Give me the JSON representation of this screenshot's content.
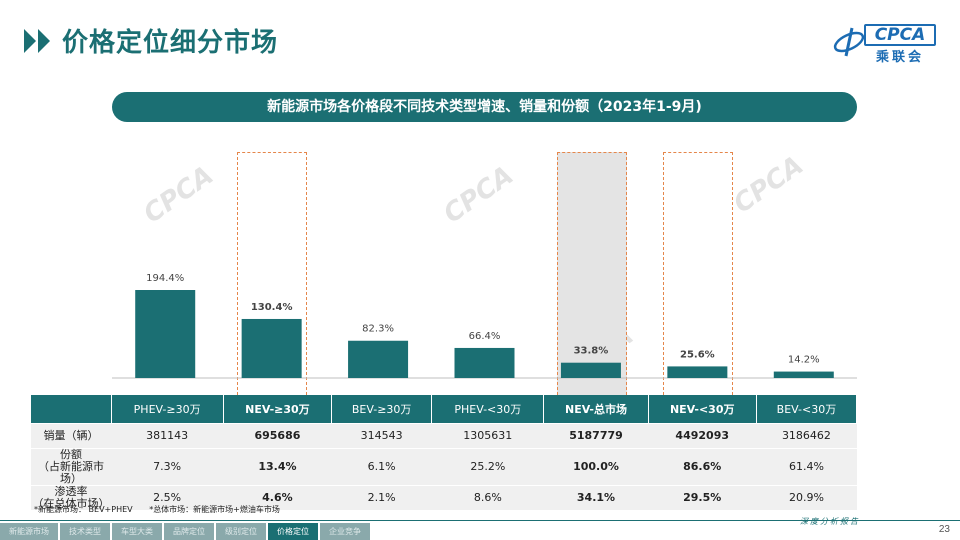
{
  "page": {
    "title": "价格定位细分市场",
    "logo_text": "CPCA",
    "logo_sub": "乘联会",
    "banner": "新能源市场各价格段不同技术类型增速、销量和份额（2023年1-9月)",
    "footer_tag": "深度分析报告",
    "page_number": "23"
  },
  "watermark": "CPCA",
  "chart_data": {
    "type": "bar",
    "categories": [
      "PHEV-≥30万",
      "NEV-≥30万",
      "BEV-≥30万",
      "PHEV-<30万",
      "NEV-总市场",
      "NEV-<30万",
      "BEV-<30万"
    ],
    "values": [
      194.4,
      130.4,
      82.3,
      66.4,
      33.8,
      25.6,
      14.2
    ],
    "value_labels": [
      "194.4%",
      "130.4%",
      "82.3%",
      "66.4%",
      "33.8%",
      "25.6%",
      "14.2%"
    ],
    "bold": [
      false,
      true,
      false,
      false,
      true,
      true,
      false
    ],
    "highlighted": [
      false,
      true,
      false,
      false,
      true,
      true,
      false
    ],
    "bar_color": "#1b6f73",
    "highlight_border": "#e5864a",
    "gray_fill": "#e4e4e4"
  },
  "table": {
    "header": [
      "PHEV-≥30万",
      "NEV-≥30万",
      "BEV-≥30万",
      "PHEV-<30万",
      "NEV-总市场",
      "NEV-<30万",
      "BEV-<30万"
    ],
    "rows": [
      {
        "label": "销量（辆）",
        "values": [
          "381143",
          "695686",
          "314543",
          "1305631",
          "5187779",
          "4492093",
          "3186462"
        ]
      },
      {
        "label": "份额\n（占新能源市场）",
        "values": [
          "7.3%",
          "13.4%",
          "6.1%",
          "25.2%",
          "100.0%",
          "86.6%",
          "61.4%"
        ]
      },
      {
        "label": "渗透率\n（在总体市场）",
        "values": [
          "2.5%",
          "4.6%",
          "2.1%",
          "8.6%",
          "34.1%",
          "29.5%",
          "20.9%"
        ]
      }
    ]
  },
  "notes": [
    "*新能源市场：  BEV+PHEV",
    "*总体市场：新能源市场+燃油车市场"
  ],
  "nav": [
    "新能源市场",
    "技术类型",
    "车型大类",
    "品牌定位",
    "级别定位",
    "价格定位",
    "企业竞争"
  ],
  "nav_active": 5
}
